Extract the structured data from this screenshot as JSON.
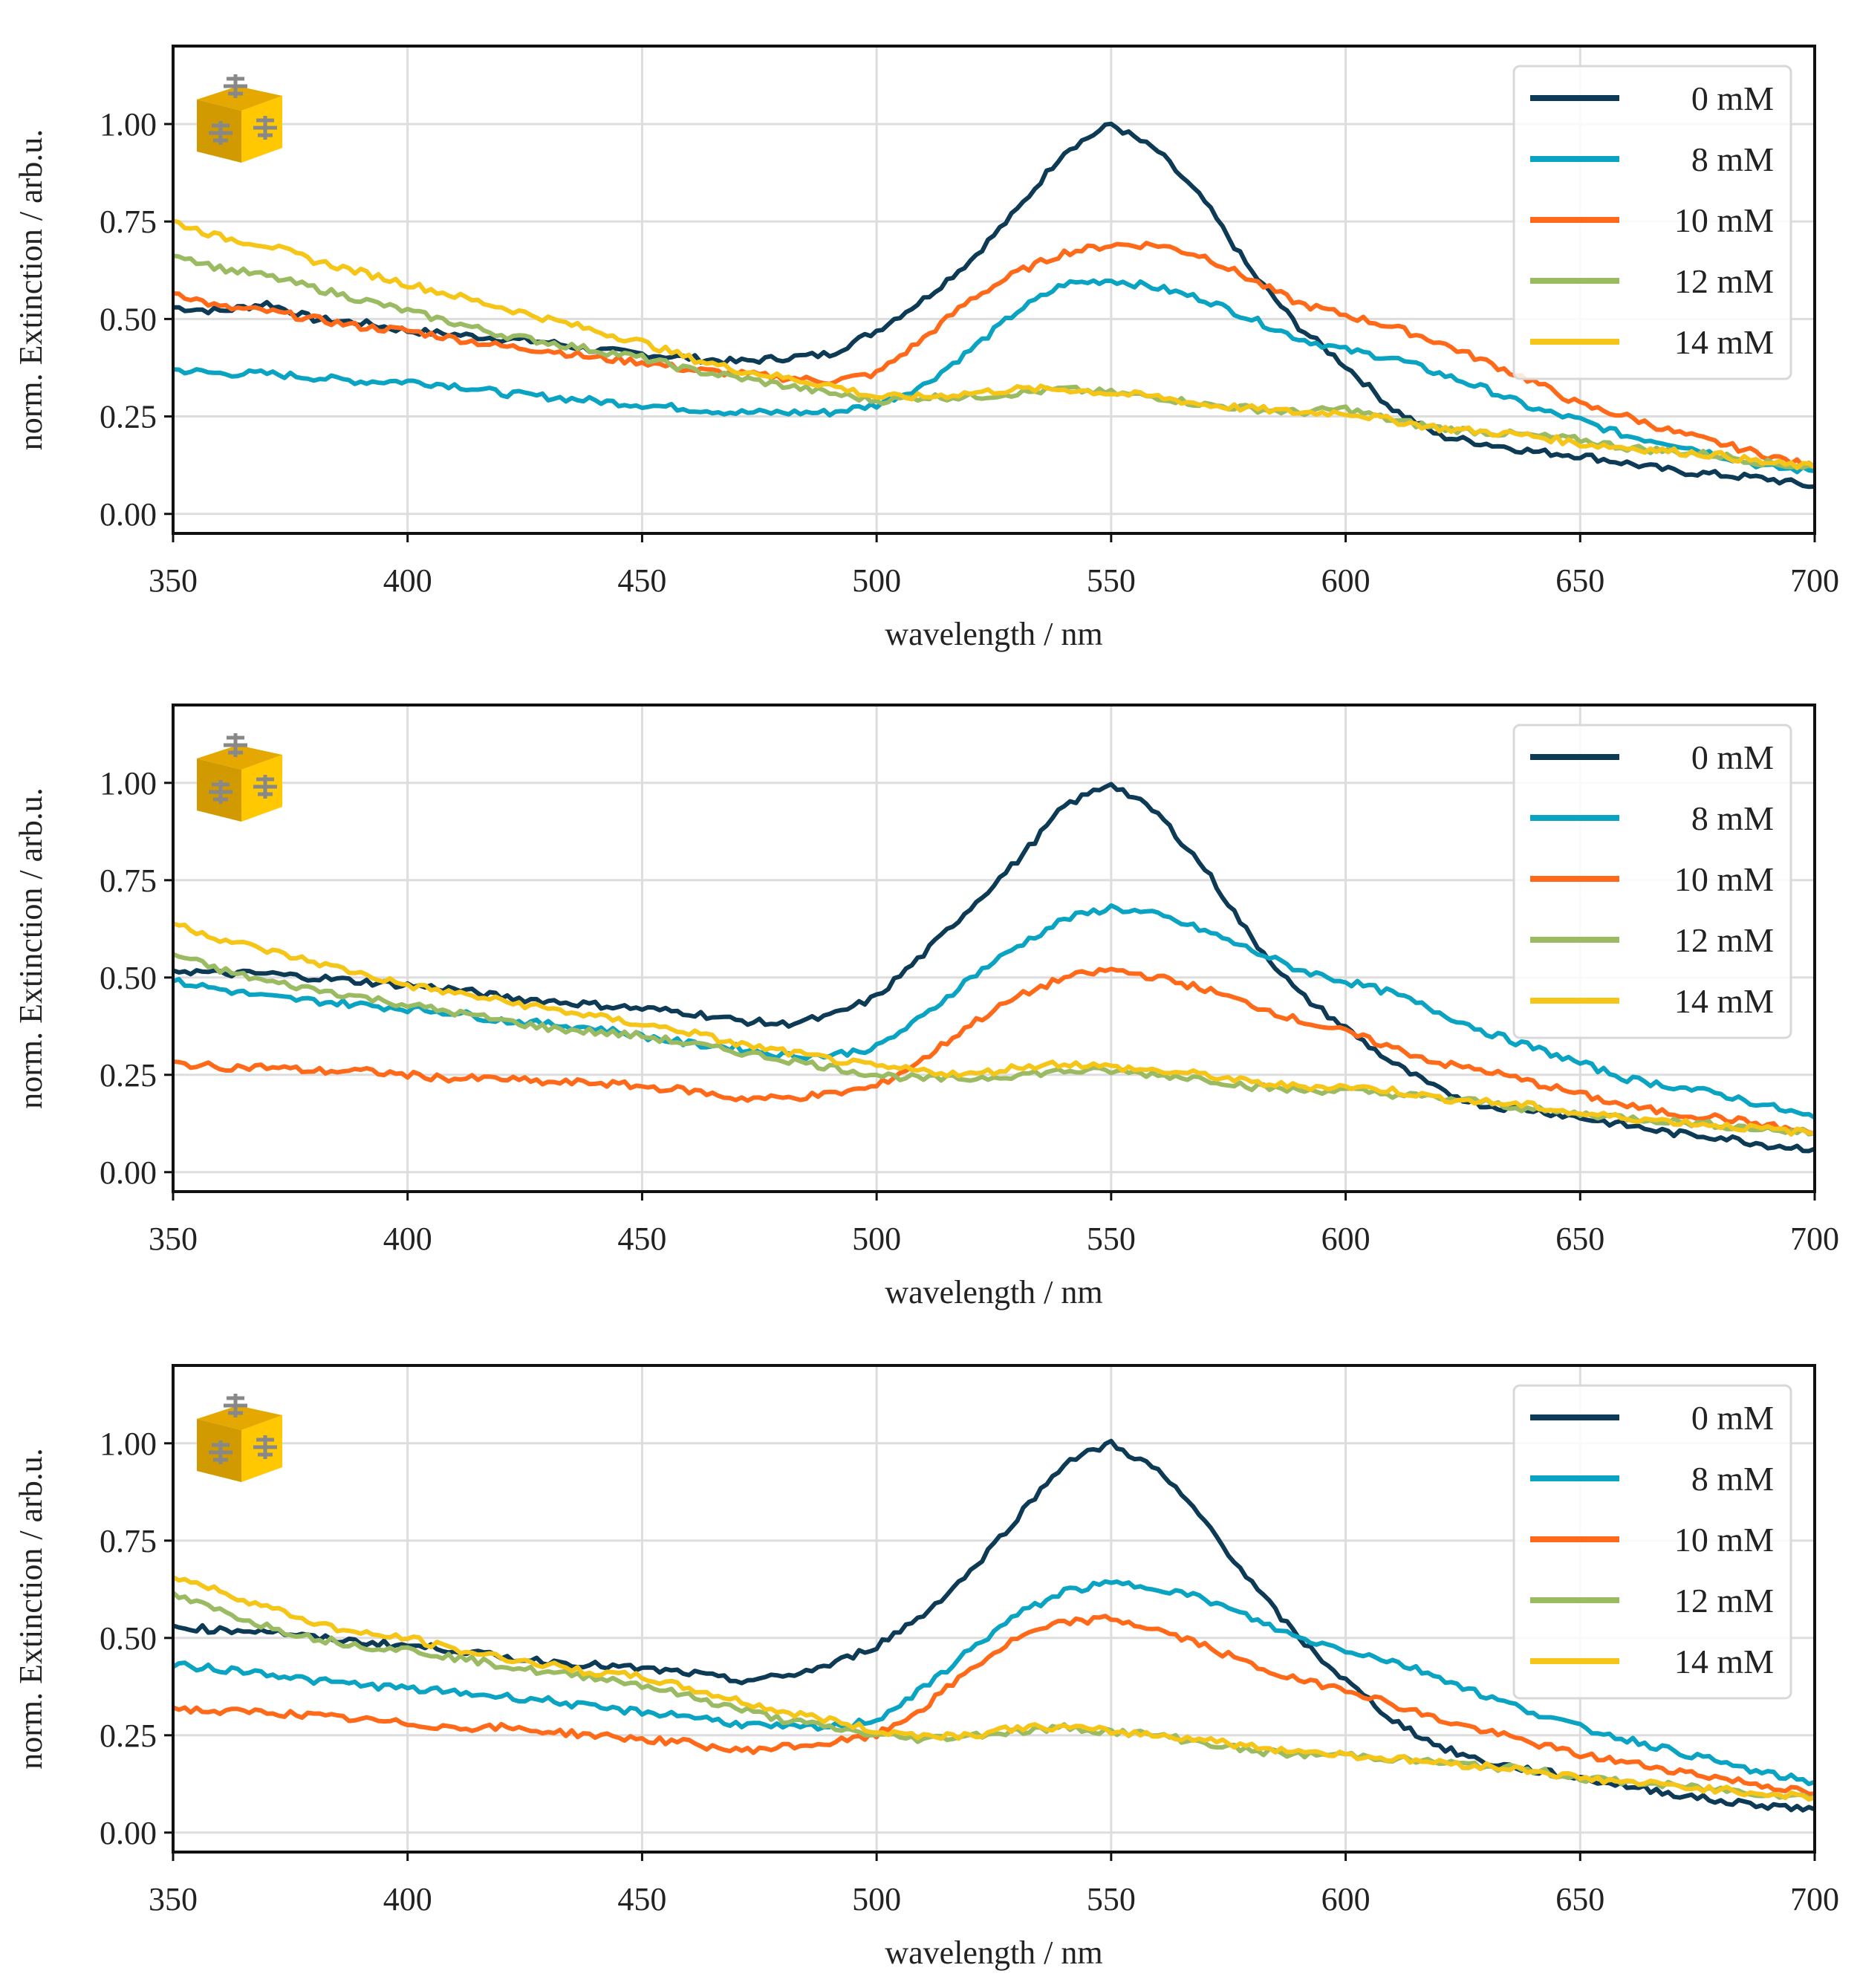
{
  "colors": {
    "0 mM": "#0d3a55",
    "8 mM": "#0aa3c2",
    "10 mM": "#ff6a1a",
    "12 mM": "#9bbb62",
    "14 mM": "#f5c518",
    "grid": "#dddddd",
    "axes": "#111111"
  },
  "chart_data": [
    {
      "type": "line",
      "panel_icon": "gold-cube-with-molecules-icon",
      "xlabel": "wavelength / nm",
      "ylabel": "norm. Extinction / arb.u.",
      "xlim": [
        350,
        700
      ],
      "ylim": [
        -0.05,
        1.2
      ],
      "xticks": [
        "350",
        "400",
        "450",
        "500",
        "550",
        "600",
        "650",
        "700"
      ],
      "yticks": [
        "0.00",
        "0.25",
        "0.50",
        "0.75",
        "1.00"
      ],
      "grid": true,
      "legend_position": "top-right",
      "x": [
        350,
        360,
        370,
        380,
        390,
        400,
        410,
        420,
        430,
        440,
        450,
        460,
        470,
        480,
        490,
        500,
        510,
        520,
        530,
        540,
        550,
        560,
        570,
        580,
        590,
        600,
        610,
        620,
        630,
        640,
        650,
        660,
        670,
        680,
        690,
        700
      ],
      "series": [
        {
          "name": "0 mM",
          "values": [
            0.53,
            0.52,
            0.54,
            0.5,
            0.49,
            0.47,
            0.46,
            0.45,
            0.44,
            0.42,
            0.41,
            0.4,
            0.39,
            0.4,
            0.41,
            0.47,
            0.55,
            0.65,
            0.78,
            0.93,
            1.0,
            0.93,
            0.8,
            0.62,
            0.48,
            0.38,
            0.27,
            0.2,
            0.18,
            0.16,
            0.15,
            0.13,
            0.11,
            0.1,
            0.09,
            0.07
          ]
        },
        {
          "name": "8 mM",
          "values": [
            0.37,
            0.36,
            0.36,
            0.35,
            0.34,
            0.34,
            0.33,
            0.31,
            0.3,
            0.29,
            0.28,
            0.27,
            0.26,
            0.26,
            0.26,
            0.28,
            0.33,
            0.42,
            0.52,
            0.59,
            0.6,
            0.58,
            0.55,
            0.5,
            0.45,
            0.42,
            0.4,
            0.36,
            0.32,
            0.27,
            0.24,
            0.2,
            0.18,
            0.15,
            0.12,
            0.11
          ]
        },
        {
          "name": "10 mM",
          "values": [
            0.57,
            0.53,
            0.52,
            0.5,
            0.48,
            0.47,
            0.45,
            0.43,
            0.42,
            0.4,
            0.39,
            0.37,
            0.36,
            0.35,
            0.34,
            0.36,
            0.45,
            0.55,
            0.62,
            0.67,
            0.69,
            0.69,
            0.66,
            0.6,
            0.54,
            0.51,
            0.48,
            0.44,
            0.39,
            0.34,
            0.28,
            0.25,
            0.21,
            0.18,
            0.15,
            0.12
          ]
        },
        {
          "name": "12 mM",
          "values": [
            0.67,
            0.63,
            0.61,
            0.58,
            0.55,
            0.52,
            0.49,
            0.46,
            0.44,
            0.42,
            0.4,
            0.37,
            0.35,
            0.33,
            0.31,
            0.29,
            0.3,
            0.3,
            0.31,
            0.32,
            0.31,
            0.3,
            0.28,
            0.27,
            0.26,
            0.27,
            0.24,
            0.22,
            0.21,
            0.2,
            0.19,
            0.17,
            0.16,
            0.15,
            0.13,
            0.12
          ]
        },
        {
          "name": "14 mM",
          "values": [
            0.75,
            0.71,
            0.69,
            0.65,
            0.62,
            0.59,
            0.56,
            0.53,
            0.5,
            0.47,
            0.44,
            0.4,
            0.37,
            0.35,
            0.33,
            0.3,
            0.3,
            0.31,
            0.32,
            0.32,
            0.31,
            0.3,
            0.28,
            0.27,
            0.26,
            0.26,
            0.24,
            0.22,
            0.21,
            0.2,
            0.18,
            0.17,
            0.16,
            0.15,
            0.13,
            0.12
          ]
        }
      ]
    },
    {
      "type": "line",
      "panel_icon": "gold-cube-with-molecules-icon",
      "xlabel": "wavelength / nm",
      "ylabel": "norm. Extinction / arb.u.",
      "xlim": [
        350,
        700
      ],
      "ylim": [
        -0.05,
        1.2
      ],
      "xticks": [
        "350",
        "400",
        "450",
        "500",
        "550",
        "600",
        "650",
        "700"
      ],
      "yticks": [
        "0.00",
        "0.25",
        "0.50",
        "0.75",
        "1.00"
      ],
      "grid": true,
      "legend_position": "top-right",
      "x": [
        350,
        360,
        370,
        380,
        390,
        400,
        410,
        420,
        430,
        440,
        450,
        460,
        470,
        480,
        490,
        500,
        510,
        520,
        530,
        540,
        550,
        560,
        570,
        580,
        590,
        600,
        610,
        620,
        630,
        640,
        650,
        660,
        670,
        680,
        690,
        700
      ],
      "series": [
        {
          "name": "0 mM",
          "values": [
            0.52,
            0.51,
            0.51,
            0.5,
            0.49,
            0.48,
            0.47,
            0.45,
            0.44,
            0.43,
            0.42,
            0.41,
            0.39,
            0.38,
            0.4,
            0.45,
            0.56,
            0.68,
            0.8,
            0.94,
            1.0,
            0.92,
            0.78,
            0.6,
            0.46,
            0.37,
            0.28,
            0.21,
            0.17,
            0.16,
            0.14,
            0.12,
            0.1,
            0.09,
            0.07,
            0.06
          ]
        },
        {
          "name": "8 mM",
          "values": [
            0.49,
            0.47,
            0.45,
            0.44,
            0.43,
            0.42,
            0.41,
            0.39,
            0.38,
            0.37,
            0.35,
            0.33,
            0.32,
            0.3,
            0.3,
            0.32,
            0.4,
            0.5,
            0.58,
            0.65,
            0.68,
            0.66,
            0.62,
            0.57,
            0.52,
            0.49,
            0.46,
            0.41,
            0.36,
            0.32,
            0.28,
            0.24,
            0.22,
            0.2,
            0.17,
            0.14
          ]
        },
        {
          "name": "10 mM",
          "values": [
            0.28,
            0.27,
            0.27,
            0.26,
            0.26,
            0.25,
            0.24,
            0.24,
            0.23,
            0.23,
            0.22,
            0.21,
            0.19,
            0.19,
            0.2,
            0.22,
            0.29,
            0.38,
            0.45,
            0.5,
            0.52,
            0.5,
            0.47,
            0.43,
            0.39,
            0.36,
            0.32,
            0.28,
            0.26,
            0.23,
            0.2,
            0.17,
            0.15,
            0.14,
            0.12,
            0.1
          ]
        },
        {
          "name": "12 mM",
          "values": [
            0.56,
            0.52,
            0.49,
            0.47,
            0.45,
            0.43,
            0.41,
            0.39,
            0.37,
            0.36,
            0.35,
            0.33,
            0.31,
            0.29,
            0.27,
            0.25,
            0.24,
            0.24,
            0.25,
            0.26,
            0.26,
            0.25,
            0.24,
            0.22,
            0.21,
            0.21,
            0.2,
            0.19,
            0.18,
            0.16,
            0.15,
            0.14,
            0.13,
            0.12,
            0.11,
            0.1
          ]
        },
        {
          "name": "14 mM",
          "values": [
            0.64,
            0.6,
            0.57,
            0.54,
            0.51,
            0.48,
            0.46,
            0.44,
            0.42,
            0.4,
            0.38,
            0.36,
            0.33,
            0.31,
            0.29,
            0.27,
            0.26,
            0.25,
            0.27,
            0.28,
            0.27,
            0.26,
            0.25,
            0.23,
            0.22,
            0.22,
            0.21,
            0.19,
            0.18,
            0.17,
            0.15,
            0.14,
            0.13,
            0.12,
            0.11,
            0.1
          ]
        }
      ]
    },
    {
      "type": "line",
      "panel_icon": "gold-cube-with-molecules-icon",
      "xlabel": "wavelength / nm",
      "ylabel": "norm. Extinction / arb.u.",
      "xlim": [
        350,
        700
      ],
      "ylim": [
        -0.05,
        1.2
      ],
      "xticks": [
        "350",
        "400",
        "450",
        "500",
        "550",
        "600",
        "650",
        "700"
      ],
      "yticks": [
        "0.00",
        "0.25",
        "0.50",
        "0.75",
        "1.00"
      ],
      "grid": true,
      "legend_position": "top-right",
      "x": [
        350,
        360,
        370,
        380,
        390,
        400,
        410,
        420,
        430,
        440,
        450,
        460,
        470,
        480,
        490,
        500,
        510,
        520,
        530,
        540,
        550,
        560,
        570,
        580,
        590,
        600,
        610,
        620,
        630,
        640,
        650,
        660,
        670,
        680,
        690,
        700
      ],
      "series": [
        {
          "name": "0 mM",
          "values": [
            0.53,
            0.52,
            0.52,
            0.5,
            0.49,
            0.48,
            0.47,
            0.45,
            0.44,
            0.43,
            0.42,
            0.41,
            0.39,
            0.4,
            0.43,
            0.48,
            0.56,
            0.67,
            0.81,
            0.95,
            1.0,
            0.93,
            0.8,
            0.64,
            0.5,
            0.39,
            0.29,
            0.22,
            0.18,
            0.16,
            0.14,
            0.12,
            0.1,
            0.08,
            0.07,
            0.06
          ]
        },
        {
          "name": "8 mM",
          "values": [
            0.43,
            0.42,
            0.41,
            0.39,
            0.38,
            0.37,
            0.36,
            0.35,
            0.34,
            0.32,
            0.31,
            0.3,
            0.28,
            0.27,
            0.27,
            0.29,
            0.37,
            0.47,
            0.56,
            0.62,
            0.64,
            0.63,
            0.6,
            0.55,
            0.5,
            0.47,
            0.44,
            0.4,
            0.35,
            0.31,
            0.27,
            0.24,
            0.21,
            0.18,
            0.15,
            0.13
          ]
        },
        {
          "name": "10 mM",
          "values": [
            0.32,
            0.31,
            0.31,
            0.3,
            0.29,
            0.28,
            0.27,
            0.27,
            0.26,
            0.25,
            0.24,
            0.23,
            0.21,
            0.22,
            0.23,
            0.25,
            0.32,
            0.42,
            0.5,
            0.54,
            0.55,
            0.52,
            0.48,
            0.43,
            0.39,
            0.37,
            0.33,
            0.29,
            0.26,
            0.23,
            0.2,
            0.18,
            0.16,
            0.14,
            0.12,
            0.1
          ]
        },
        {
          "name": "12 mM",
          "values": [
            0.61,
            0.57,
            0.53,
            0.5,
            0.48,
            0.47,
            0.45,
            0.43,
            0.41,
            0.4,
            0.38,
            0.35,
            0.32,
            0.29,
            0.27,
            0.25,
            0.24,
            0.25,
            0.26,
            0.27,
            0.26,
            0.25,
            0.23,
            0.21,
            0.2,
            0.2,
            0.19,
            0.18,
            0.17,
            0.16,
            0.14,
            0.13,
            0.12,
            0.11,
            0.1,
            0.09
          ]
        },
        {
          "name": "14 mM",
          "values": [
            0.66,
            0.62,
            0.58,
            0.54,
            0.51,
            0.5,
            0.47,
            0.45,
            0.43,
            0.41,
            0.4,
            0.37,
            0.34,
            0.31,
            0.29,
            0.26,
            0.25,
            0.25,
            0.27,
            0.27,
            0.26,
            0.25,
            0.24,
            0.22,
            0.21,
            0.2,
            0.19,
            0.18,
            0.17,
            0.16,
            0.14,
            0.13,
            0.12,
            0.11,
            0.1,
            0.09
          ]
        }
      ]
    }
  ]
}
